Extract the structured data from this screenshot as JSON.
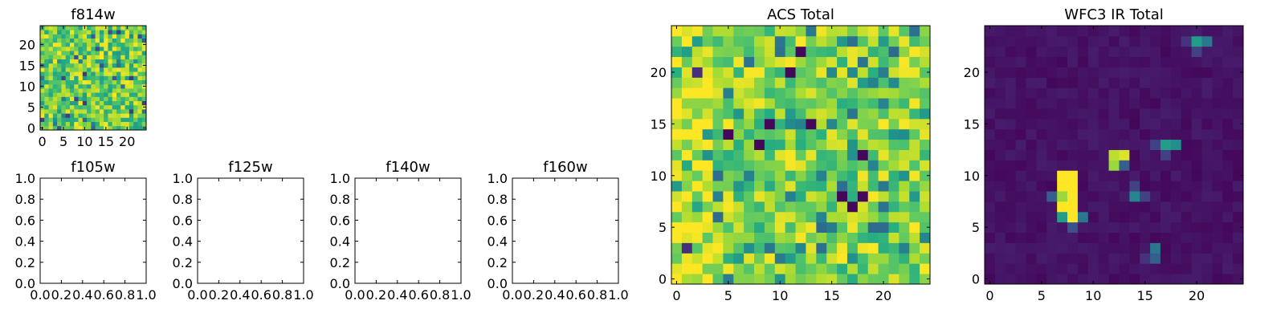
{
  "chart_data": [
    {
      "type": "heatmap",
      "title": "f814w",
      "xlim": [
        -0.5,
        24.5
      ],
      "ylim": [
        -0.5,
        24.5
      ],
      "origin": "lower",
      "grid": false,
      "colormap": "viridis",
      "x_ticks": [
        "0",
        "5",
        "10",
        "15",
        "20"
      ],
      "y_ticks": [
        "0",
        "5",
        "10",
        "15",
        "20"
      ],
      "value_range": [
        0,
        1
      ],
      "generator": "noise",
      "values": []
    },
    {
      "type": "empty",
      "title": "f105w",
      "xlim": [
        0,
        1
      ],
      "ylim": [
        0,
        1
      ],
      "x_ticks": [
        "0.0",
        "0.2",
        "0.4",
        "0.6",
        "0.8",
        "1.0"
      ],
      "y_ticks": [
        "0.0",
        "0.2",
        "0.4",
        "0.6",
        "0.8",
        "1.0"
      ]
    },
    {
      "type": "empty",
      "title": "f125w",
      "xlim": [
        0,
        1
      ],
      "ylim": [
        0,
        1
      ],
      "x_ticks": [
        "0.0",
        "0.2",
        "0.4",
        "0.6",
        "0.8",
        "1.0"
      ],
      "y_ticks": [
        "0.0",
        "0.2",
        "0.4",
        "0.6",
        "0.8",
        "1.0"
      ]
    },
    {
      "type": "empty",
      "title": "f140w",
      "xlim": [
        0,
        1
      ],
      "ylim": [
        0,
        1
      ],
      "x_ticks": [
        "0.0",
        "0.2",
        "0.4",
        "0.6",
        "0.8",
        "1.0"
      ],
      "y_ticks": [
        "0.0",
        "0.2",
        "0.4",
        "0.6",
        "0.8",
        "1.0"
      ]
    },
    {
      "type": "empty",
      "title": "f160w",
      "xlim": [
        0,
        1
      ],
      "ylim": [
        0,
        1
      ],
      "x_ticks": [
        "0.0",
        "0.2",
        "0.4",
        "0.6",
        "0.8",
        "1.0"
      ],
      "y_ticks": [
        "0.0",
        "0.2",
        "0.4",
        "0.6",
        "0.8",
        "1.0"
      ]
    },
    {
      "type": "heatmap",
      "title": "ACS Total",
      "xlim": [
        -0.5,
        24.5
      ],
      "ylim": [
        -0.5,
        24.5
      ],
      "origin": "lower",
      "grid": false,
      "colormap": "viridis",
      "x_ticks": [
        "0",
        "5",
        "10",
        "15",
        "20"
      ],
      "y_ticks": [
        "0",
        "5",
        "10",
        "15",
        "20"
      ],
      "value_range": [
        0,
        1
      ],
      "generator": "noise-bright",
      "values": []
    },
    {
      "type": "heatmap",
      "title": "WFC3 IR Total",
      "xlim": [
        -0.5,
        24.5
      ],
      "ylim": [
        -0.5,
        24.5
      ],
      "origin": "lower",
      "grid": false,
      "colormap": "viridis",
      "x_ticks": [
        "0",
        "5",
        "10",
        "15",
        "20"
      ],
      "y_ticks": [
        "0",
        "5",
        "10",
        "15",
        "20"
      ],
      "value_range": [
        0,
        1
      ],
      "generator": "sparse",
      "bright_pixels": [
        {
          "x": 7,
          "y": 10,
          "v": 1.0
        },
        {
          "x": 8,
          "y": 10,
          "v": 1.0
        },
        {
          "x": 7,
          "y": 9,
          "v": 1.0
        },
        {
          "x": 8,
          "y": 9,
          "v": 1.0
        },
        {
          "x": 7,
          "y": 8,
          "v": 0.85
        },
        {
          "x": 8,
          "y": 8,
          "v": 1.0
        },
        {
          "x": 7,
          "y": 7,
          "v": 1.0
        },
        {
          "x": 8,
          "y": 7,
          "v": 1.0
        },
        {
          "x": 8,
          "y": 6,
          "v": 1.0
        },
        {
          "x": 7,
          "y": 6,
          "v": 0.55
        },
        {
          "x": 9,
          "y": 6,
          "v": 0.4
        },
        {
          "x": 6,
          "y": 8,
          "v": 0.3
        },
        {
          "x": 8,
          "y": 5,
          "v": 0.25
        },
        {
          "x": 12,
          "y": 12,
          "v": 0.9
        },
        {
          "x": 13,
          "y": 12,
          "v": 0.95
        },
        {
          "x": 12,
          "y": 11,
          "v": 0.85
        },
        {
          "x": 13,
          "y": 11,
          "v": 0.3
        },
        {
          "x": 14,
          "y": 8,
          "v": 0.45
        },
        {
          "x": 14,
          "y": 9,
          "v": 0.2
        },
        {
          "x": 15,
          "y": 8,
          "v": 0.2
        },
        {
          "x": 17,
          "y": 13,
          "v": 0.55
        },
        {
          "x": 18,
          "y": 13,
          "v": 0.5
        },
        {
          "x": 16,
          "y": 13,
          "v": 0.2
        },
        {
          "x": 17,
          "y": 12,
          "v": 0.2
        },
        {
          "x": 16,
          "y": 3,
          "v": 0.4
        },
        {
          "x": 16,
          "y": 2,
          "v": 0.3
        },
        {
          "x": 15,
          "y": 2,
          "v": 0.15
        },
        {
          "x": 20,
          "y": 23,
          "v": 0.55
        },
        {
          "x": 21,
          "y": 23,
          "v": 0.4
        },
        {
          "x": 20,
          "y": 22,
          "v": 0.2
        },
        {
          "x": 19,
          "y": 23,
          "v": 0.15
        }
      ],
      "values": []
    }
  ]
}
